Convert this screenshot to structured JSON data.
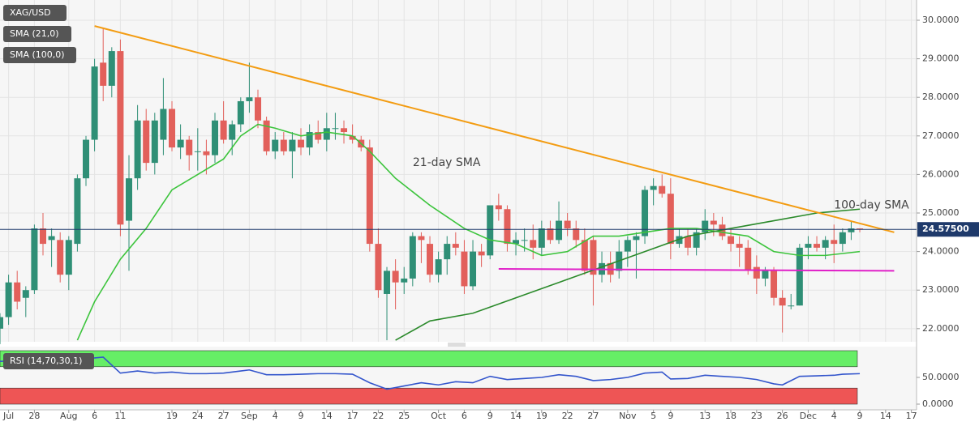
{
  "chart_data": [
    {
      "type": "candlestick",
      "title": "XAG/USD",
      "up_color": "#2f8f76",
      "down_color": "#e2605b",
      "xlim": [
        0,
        106.6
      ],
      "ylim": [
        21.66,
        30.525
      ],
      "yticks": [
        {
          "value": 22,
          "label": "22.0000"
        },
        {
          "value": 23,
          "label": "23.0000"
        },
        {
          "value": 24,
          "label": "24.0000"
        },
        {
          "value": 25,
          "label": "25.0000"
        },
        {
          "value": 26,
          "label": "26.0000"
        },
        {
          "value": 27,
          "label": "27.0000"
        },
        {
          "value": 28,
          "label": "28.0000"
        },
        {
          "value": 29,
          "label": "29.0000"
        },
        {
          "value": 30,
          "label": "30.0000"
        }
      ],
      "xticks": [
        {
          "value": 1,
          "label": "Jul"
        },
        {
          "value": 4,
          "label": "28"
        },
        {
          "value": 8,
          "label": "Aug"
        },
        {
          "value": 11,
          "label": "6"
        },
        {
          "value": 14,
          "label": "11"
        },
        {
          "value": 20,
          "label": "19"
        },
        {
          "value": 23,
          "label": "24"
        },
        {
          "value": 26,
          "label": "27"
        },
        {
          "value": 29,
          "label": "Sep"
        },
        {
          "value": 32,
          "label": "4"
        },
        {
          "value": 35,
          "label": "9"
        },
        {
          "value": 38,
          "label": "14"
        },
        {
          "value": 41,
          "label": "17"
        },
        {
          "value": 44,
          "label": "22"
        },
        {
          "value": 47,
          "label": "25"
        },
        {
          "value": 51,
          "label": "Oct"
        },
        {
          "value": 54,
          "label": "6"
        },
        {
          "value": 57,
          "label": "9"
        },
        {
          "value": 60,
          "label": "14"
        },
        {
          "value": 63,
          "label": "19"
        },
        {
          "value": 66,
          "label": "22"
        },
        {
          "value": 69,
          "label": "27"
        },
        {
          "value": 73,
          "label": "Nov"
        },
        {
          "value": 76,
          "label": "5"
        },
        {
          "value": 78,
          "label": "9"
        },
        {
          "value": 82,
          "label": "13"
        },
        {
          "value": 85,
          "label": "18"
        },
        {
          "value": 88,
          "label": "23"
        },
        {
          "value": 91,
          "label": "26"
        },
        {
          "value": 94,
          "label": "Dec"
        },
        {
          "value": 97,
          "label": "4"
        },
        {
          "value": 100,
          "label": "9"
        },
        {
          "value": 103,
          "label": "14"
        },
        {
          "value": 106,
          "label": "17"
        }
      ],
      "grid": true,
      "x": [
        0,
        1,
        2,
        3,
        4,
        5,
        6,
        7,
        8,
        9,
        10,
        11,
        12,
        13,
        14,
        15,
        16,
        17,
        18,
        19,
        20,
        21,
        22,
        23,
        24,
        25,
        26,
        27,
        28,
        29,
        30,
        31,
        32,
        33,
        34,
        35,
        36,
        37,
        38,
        39,
        40,
        41,
        42,
        43,
        44,
        45,
        46,
        47,
        48,
        49,
        50,
        51,
        52,
        53,
        54,
        55,
        56,
        57,
        58,
        59,
        60,
        61,
        62,
        63,
        64,
        65,
        66,
        67,
        68,
        69,
        70,
        71,
        72,
        73,
        74,
        75,
        76,
        77,
        78,
        79,
        80,
        81,
        82,
        83,
        84,
        85,
        86,
        87,
        88,
        89,
        90,
        91,
        92,
        93,
        94,
        95,
        96,
        97,
        98,
        99,
        100
      ],
      "ohlc": [
        [
          22.0,
          22.4,
          21.6,
          22.3
        ],
        [
          22.3,
          23.4,
          22.1,
          23.2
        ],
        [
          23.2,
          23.5,
          22.5,
          22.7
        ],
        [
          22.8,
          23.1,
          22.3,
          23.0
        ],
        [
          23.0,
          24.7,
          22.9,
          24.6
        ],
        [
          24.6,
          25.0,
          23.9,
          24.2
        ],
        [
          24.3,
          24.6,
          23.6,
          24.4
        ],
        [
          24.3,
          24.5,
          23.2,
          23.4
        ],
        [
          23.4,
          24.4,
          23.0,
          24.3
        ],
        [
          24.2,
          26.0,
          24.0,
          25.9
        ],
        [
          25.9,
          27.0,
          25.7,
          26.9
        ],
        [
          26.9,
          29.0,
          26.6,
          28.8
        ],
        [
          28.9,
          29.8,
          27.9,
          28.3
        ],
        [
          28.3,
          29.3,
          28.0,
          29.2
        ],
        [
          29.2,
          29.5,
          24.4,
          24.7
        ],
        [
          24.8,
          26.5,
          23.5,
          25.9
        ],
        [
          25.9,
          27.8,
          25.6,
          27.4
        ],
        [
          27.4,
          27.7,
          26.1,
          26.3
        ],
        [
          26.3,
          27.6,
          26.0,
          27.4
        ],
        [
          26.9,
          28.5,
          26.5,
          27.7
        ],
        [
          27.7,
          27.9,
          26.6,
          26.7
        ],
        [
          26.7,
          27.3,
          26.4,
          26.9
        ],
        [
          26.9,
          27.0,
          26.1,
          26.5
        ],
        [
          26.6,
          27.2,
          26.1,
          26.6
        ],
        [
          26.6,
          26.9,
          26.0,
          26.5
        ],
        [
          26.5,
          27.6,
          26.3,
          27.4
        ],
        [
          27.4,
          27.9,
          26.8,
          26.9
        ],
        [
          26.9,
          27.4,
          26.5,
          27.3
        ],
        [
          27.3,
          28.0,
          27.1,
          27.9
        ],
        [
          27.9,
          28.9,
          27.6,
          28.0
        ],
        [
          28.0,
          28.2,
          27.2,
          27.4
        ],
        [
          27.4,
          27.5,
          26.5,
          26.6
        ],
        [
          26.6,
          27.1,
          26.4,
          26.9
        ],
        [
          26.9,
          27.1,
          26.5,
          26.6
        ],
        [
          26.6,
          27.1,
          25.9,
          26.9
        ],
        [
          26.9,
          27.2,
          26.5,
          26.7
        ],
        [
          26.7,
          27.3,
          26.5,
          27.1
        ],
        [
          27.1,
          27.4,
          26.8,
          26.9
        ],
        [
          26.9,
          27.6,
          26.6,
          27.2
        ],
        [
          27.2,
          27.6,
          26.9,
          27.2
        ],
        [
          27.2,
          27.4,
          26.8,
          27.1
        ],
        [
          27.0,
          27.3,
          26.8,
          26.9
        ],
        [
          26.9,
          27.0,
          26.6,
          26.7
        ],
        [
          26.7,
          26.9,
          24.0,
          24.2
        ],
        [
          24.2,
          24.6,
          22.8,
          23.0
        ],
        [
          22.9,
          23.6,
          21.7,
          23.5
        ],
        [
          23.5,
          23.8,
          22.5,
          23.2
        ],
        [
          23.2,
          23.6,
          22.9,
          23.3
        ],
        [
          23.3,
          24.5,
          23.1,
          24.4
        ],
        [
          24.4,
          24.5,
          23.7,
          24.3
        ],
        [
          24.2,
          24.4,
          23.2,
          23.4
        ],
        [
          23.4,
          24.0,
          23.2,
          23.8
        ],
        [
          23.8,
          24.4,
          23.4,
          24.2
        ],
        [
          24.2,
          24.5,
          23.9,
          24.1
        ],
        [
          24.0,
          24.3,
          22.9,
          23.1
        ],
        [
          23.1,
          24.3,
          23.0,
          24.0
        ],
        [
          24.0,
          24.2,
          23.6,
          23.9
        ],
        [
          23.9,
          25.2,
          23.8,
          25.2
        ],
        [
          25.2,
          25.5,
          24.8,
          25.1
        ],
        [
          25.1,
          25.2,
          24.0,
          24.2
        ],
        [
          24.2,
          24.5,
          23.9,
          24.3
        ],
        [
          24.3,
          24.6,
          24.0,
          24.3
        ],
        [
          24.3,
          24.7,
          23.8,
          24.1
        ],
        [
          24.1,
          24.8,
          23.9,
          24.6
        ],
        [
          24.6,
          24.8,
          24.2,
          24.3
        ],
        [
          24.3,
          25.3,
          24.2,
          24.8
        ],
        [
          24.8,
          25.0,
          24.4,
          24.6
        ],
        [
          24.6,
          24.8,
          24.1,
          24.3
        ],
        [
          24.3,
          24.6,
          23.4,
          23.5
        ],
        [
          24.3,
          24.4,
          22.6,
          23.4
        ],
        [
          23.4,
          24.0,
          23.2,
          23.7
        ],
        [
          23.7,
          24.0,
          23.2,
          23.4
        ],
        [
          23.5,
          24.3,
          23.3,
          24.0
        ],
        [
          24.0,
          24.4,
          23.6,
          24.3
        ],
        [
          24.3,
          24.5,
          23.3,
          24.4
        ],
        [
          24.4,
          25.7,
          24.2,
          25.6
        ],
        [
          25.6,
          25.9,
          25.2,
          25.7
        ],
        [
          25.7,
          26.0,
          25.4,
          25.5
        ],
        [
          25.5,
          25.9,
          23.8,
          24.2
        ],
        [
          24.2,
          24.6,
          24.1,
          24.4
        ],
        [
          24.4,
          24.6,
          23.9,
          24.1
        ],
        [
          24.1,
          24.6,
          23.9,
          24.5
        ],
        [
          24.5,
          25.1,
          24.3,
          24.8
        ],
        [
          24.8,
          25.0,
          24.4,
          24.7
        ],
        [
          24.7,
          24.9,
          24.3,
          24.4
        ],
        [
          24.4,
          24.6,
          24.0,
          24.2
        ],
        [
          24.2,
          24.4,
          23.6,
          24.1
        ],
        [
          24.1,
          24.3,
          23.4,
          23.5
        ],
        [
          23.6,
          23.9,
          22.9,
          23.3
        ],
        [
          23.3,
          23.6,
          23.1,
          23.5
        ],
        [
          23.5,
          23.6,
          22.6,
          22.8
        ],
        [
          22.8,
          23.0,
          21.9,
          22.6
        ],
        [
          22.6,
          22.9,
          22.5,
          22.6
        ],
        [
          22.6,
          24.2,
          22.6,
          24.1
        ],
        [
          24.1,
          24.4,
          23.8,
          24.2
        ],
        [
          24.2,
          24.4,
          24.0,
          24.1
        ],
        [
          24.1,
          24.4,
          23.8,
          24.3
        ],
        [
          24.3,
          24.7,
          23.7,
          24.2
        ],
        [
          24.2,
          24.6,
          24.0,
          24.5
        ],
        [
          24.5,
          24.8,
          24.3,
          24.6
        ],
        [
          24.6,
          24.6,
          24.5,
          24.58
        ]
      ],
      "series": [
        {
          "name": "SMA (21,0)",
          "color": "#3cc43c",
          "x": [
            9,
            11,
            14,
            17,
            20,
            23,
            26,
            28,
            30,
            32,
            35,
            38,
            41,
            43,
            46,
            50,
            54,
            57,
            60,
            63,
            66,
            69,
            72,
            75,
            78,
            81,
            84,
            87,
            90,
            93,
            96,
            100
          ],
          "values": [
            21.7,
            22.7,
            23.8,
            24.6,
            25.6,
            26.0,
            26.4,
            27.0,
            27.3,
            27.2,
            27.0,
            27.1,
            27.0,
            26.6,
            25.9,
            25.2,
            24.6,
            24.3,
            24.2,
            23.9,
            24.0,
            24.4,
            24.4,
            24.5,
            24.6,
            24.6,
            24.5,
            24.4,
            24.0,
            23.9,
            23.9,
            24.0
          ]
        },
        {
          "name": "SMA (100,0)",
          "color": "#2b8a2b",
          "x": [
            46,
            50,
            55,
            60,
            65,
            70,
            75,
            80,
            85,
            90,
            95,
            100
          ],
          "values": [
            21.7,
            22.2,
            22.4,
            22.8,
            23.2,
            23.6,
            24.0,
            24.4,
            24.6,
            24.8,
            25.0,
            25.1
          ]
        }
      ],
      "lines": [
        {
          "color": "#f39c12",
          "x": [
            11,
            104
          ],
          "values": [
            29.85,
            24.5
          ]
        },
        {
          "color": "#e020c8",
          "x": [
            58,
            104
          ],
          "values": [
            23.55,
            23.5
          ]
        }
      ],
      "annotations": [
        {
          "text": "21-day SMA",
          "x": 48,
          "y": 26.3,
          "color": "#2aa02a"
        },
        {
          "text": "100-day SMA",
          "x": 97,
          "y": 25.2,
          "color": "#2aa02a"
        }
      ],
      "last_price": 24.575,
      "last_price_label": "24.57500",
      "last_price_color": "#1f3a6b"
    },
    {
      "type": "line",
      "title": "RSI (14,70,30,1)",
      "xlim": [
        0,
        106.6
      ],
      "ylim": [
        0,
        100
      ],
      "yticks": [
        {
          "value": 50,
          "label": "50.0000"
        },
        {
          "value": 0,
          "label": "0.0000"
        }
      ],
      "bands": [
        {
          "range": [
            70,
            100
          ],
          "color": "#66ee66"
        },
        {
          "range": [
            0,
            30
          ],
          "color": "#ee5555"
        }
      ],
      "series": [
        {
          "name": "RSI",
          "color": "#3355cc",
          "x": [
            0,
            4,
            8,
            10,
            12,
            14,
            16,
            18,
            20,
            22,
            24,
            26,
            28,
            29,
            31,
            33,
            35,
            37,
            39,
            41,
            43,
            45,
            47,
            49,
            51,
            53,
            55,
            57,
            59,
            61,
            63,
            65,
            67,
            69,
            71,
            73,
            75,
            77,
            78,
            80,
            82,
            84,
            86,
            88,
            90,
            91,
            93,
            95,
            97,
            98,
            100
          ],
          "values": [
            80,
            82,
            80,
            85,
            88,
            58,
            62,
            58,
            60,
            57,
            57,
            58,
            62,
            64,
            55,
            55,
            56,
            57,
            57,
            56,
            40,
            28,
            34,
            40,
            36,
            42,
            40,
            52,
            46,
            48,
            50,
            55,
            52,
            44,
            46,
            50,
            58,
            60,
            47,
            48,
            54,
            52,
            50,
            46,
            38,
            36,
            52,
            53,
            54,
            56,
            57
          ]
        }
      ]
    }
  ]
}
